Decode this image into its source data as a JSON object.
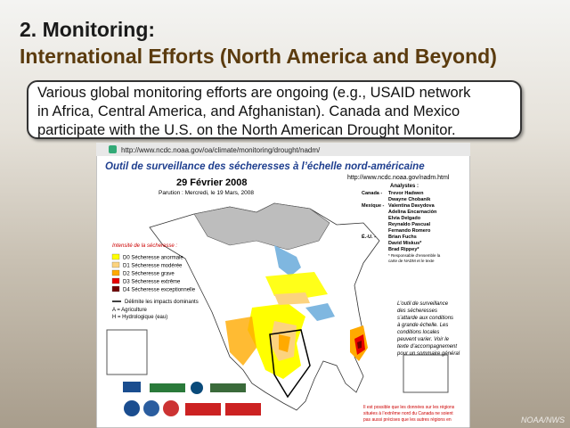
{
  "slide": {
    "title": [
      "2. Monitoring:",
      "International Efforts (North America and Beyond)"
    ],
    "callout": [
      "Various global monitoring efforts are ongoing (e.g., USAID network",
      "in Africa, Central America, and Afghanistan). Canada and Mexico",
      "participate with the U.S. on the North American Drought Monitor."
    ],
    "url": "http://www.ncdc.noaa.gov/oa/climate/monitoring/drought/nadm/",
    "watermark": "NOAA/NWS"
  },
  "map": {
    "title": "Outil de surveillance des sécheresses à l’échelle nord-américaine",
    "date": "29 Février 2008",
    "issued": "Parution : Mercredi, le 19 Mars, 2008",
    "url": "http://www.ncdc.noaa.gov/nadm.html",
    "analysts_heading": "Analystes :",
    "analysts": [
      {
        "country": "Canada -",
        "names": [
          "Trevor Hadwen",
          "Dwayne Chobanik"
        ]
      },
      {
        "country": "Mexique -",
        "names": [
          "Valentina Davydova",
          "Adelina Encarnación",
          "Elvia Delgado",
          "Reynaldo Pascual",
          "Fernando Romero"
        ]
      },
      {
        "country": "É.-U. -",
        "names": [
          "Brian Fuchs",
          "David Miskus*",
          "Brad Rippey*"
        ]
      }
    ],
    "analysts_note": [
      "* Responsable d’ensemble la",
      "carte de NADM et le texte"
    ],
    "legend_title": "Intensité de la sécheresse :",
    "legend": [
      {
        "label": "D0 Sécheresse anormale",
        "color": "#ffff00"
      },
      {
        "label": "D1 Sécheresse modérée",
        "color": "#fcd37f"
      },
      {
        "label": "D2 Sécheresse grave",
        "color": "#ffaa00"
      },
      {
        "label": "D3 Sécheresse extrême",
        "color": "#e60000"
      },
      {
        "label": "D4 Sécheresse exceptionnelle",
        "color": "#730000"
      }
    ],
    "impacts": [
      "Délimite les impacts dominants",
      "A = Agriculture",
      "H = Hydrologique (eau)"
    ],
    "note": [
      "L’outil de surveillance",
      "des sécheresses",
      "s’attarde aux conditions",
      "à grande échelle. Les",
      "conditions locales",
      "peuvent varier. Voir le",
      "texte d’accompagnement",
      "pour un sommaire général"
    ],
    "footnote": [
      "Il est possible que les données sur les régions",
      "situées à l’extrême nord du Canada ne soient",
      "pas aussi précises que les autres régions en"
    ]
  }
}
